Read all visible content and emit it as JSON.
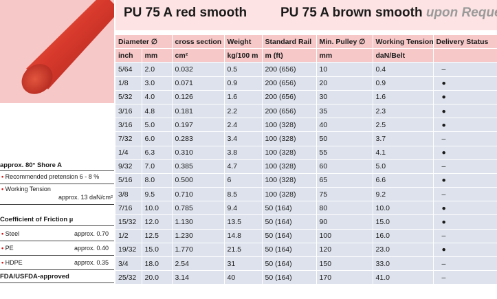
{
  "header": {
    "title_main": "PU 75 A red smooth",
    "title_alt": "PU 75 A brown smooth",
    "title_alt_suffix": "upon Request"
  },
  "table": {
    "columns": [
      "Diameter ∅",
      "cross section",
      "Weight",
      "Standard Rail",
      "Min. Pulley ∅",
      "Working Tension/Belt",
      "Delivery Status"
    ],
    "units": [
      "inch",
      "mm",
      "cm²",
      "kg/100 m",
      "m (ft)",
      "mm",
      "daN/Belt",
      ""
    ],
    "rows": [
      {
        "inch": "5/64",
        "mm": "2.0",
        "cross": "0.032",
        "weight": "0.5",
        "rail": "200 (656)",
        "pulley": "10",
        "tension": "0.4",
        "status": "–"
      },
      {
        "inch": "1/8",
        "mm": "3.0",
        "cross": "0.071",
        "weight": "0.9",
        "rail": "200 (656)",
        "pulley": "20",
        "tension": "0.9",
        "status": "●"
      },
      {
        "inch": "5/32",
        "mm": "4.0",
        "cross": "0.126",
        "weight": "1.6",
        "rail": "200 (656)",
        "pulley": "30",
        "tension": "1.6",
        "status": "●"
      },
      {
        "inch": "3/16",
        "mm": "4.8",
        "cross": "0.181",
        "weight": "2.2",
        "rail": "200 (656)",
        "pulley": "35",
        "tension": "2.3",
        "status": "●"
      },
      {
        "inch": "3/16",
        "mm": "5.0",
        "cross": "0.197",
        "weight": "2.4",
        "rail": "100 (328)",
        "pulley": "40",
        "tension": "2.5",
        "status": "●"
      },
      {
        "inch": "7/32",
        "mm": "6.0",
        "cross": "0.283",
        "weight": "3.4",
        "rail": "100 (328)",
        "pulley": "50",
        "tension": "3.7",
        "status": "–"
      },
      {
        "inch": "1/4",
        "mm": "6.3",
        "cross": "0.310",
        "weight": "3.8",
        "rail": "100 (328)",
        "pulley": "55",
        "tension": "4.1",
        "status": "●"
      },
      {
        "inch": "9/32",
        "mm": "7.0",
        "cross": "0.385",
        "weight": "4.7",
        "rail": "100 (328)",
        "pulley": "60",
        "tension": "5.0",
        "status": "–"
      },
      {
        "inch": "5/16",
        "mm": "8.0",
        "cross": "0.500",
        "weight": "6",
        "rail": "100 (328)",
        "pulley": "65",
        "tension": "6.6",
        "status": "●"
      },
      {
        "inch": "3/8",
        "mm": "9.5",
        "cross": "0.710",
        "weight": "8.5",
        "rail": "100 (328)",
        "pulley": "75",
        "tension": "9.2",
        "status": "–"
      },
      {
        "inch": "7/16",
        "mm": "10.0",
        "cross": "0.785",
        "weight": "9.4",
        "rail": "50 (164)",
        "pulley": "80",
        "tension": "10.0",
        "status": "●"
      },
      {
        "inch": "15/32",
        "mm": "12.0",
        "cross": "1.130",
        "weight": "13.5",
        "rail": "50 (164)",
        "pulley": "90",
        "tension": "15.0",
        "status": "●"
      },
      {
        "inch": "1/2",
        "mm": "12.5",
        "cross": "1.230",
        "weight": "14.8",
        "rail": "50 (164)",
        "pulley": "100",
        "tension": "16.0",
        "status": "–"
      },
      {
        "inch": "19/32",
        "mm": "15.0",
        "cross": "1.770",
        "weight": "21.5",
        "rail": "50 (164)",
        "pulley": "120",
        "tension": "23.0",
        "status": "●"
      },
      {
        "inch": "3/4",
        "mm": "18.0",
        "cross": "2.54",
        "weight": "31",
        "rail": "50 (164)",
        "pulley": "150",
        "tension": "33.0",
        "status": "–"
      },
      {
        "inch": "25/32",
        "mm": "20.0",
        "cross": "3.14",
        "weight": "40",
        "rail": "50 (164)",
        "pulley": "170",
        "tension": "41.0",
        "status": "–"
      }
    ]
  },
  "sidebar": {
    "hardness": "approx. 80° Shore A",
    "pretension": "Recommended pretension 6 - 8 %",
    "working_tension_label": "Working Tension",
    "working_tension_value": "approx. 13 daN/cm²",
    "friction_heading": "Coefficient of Friction µ",
    "friction": [
      {
        "material": "Steel",
        "value": "approx. 0.70"
      },
      {
        "material": "PE",
        "value": "approx. 0.40"
      },
      {
        "material": "HDPE",
        "value": "approx. 0.35"
      }
    ],
    "approval": "FDA/USFDA-approved",
    "bullet": "•"
  },
  "colors": {
    "header_bg": "#fde3e3",
    "table_head_bg": "#f6c8c8",
    "table_row_bg": "#dde2ec",
    "belt_red": "#d83a2c"
  }
}
